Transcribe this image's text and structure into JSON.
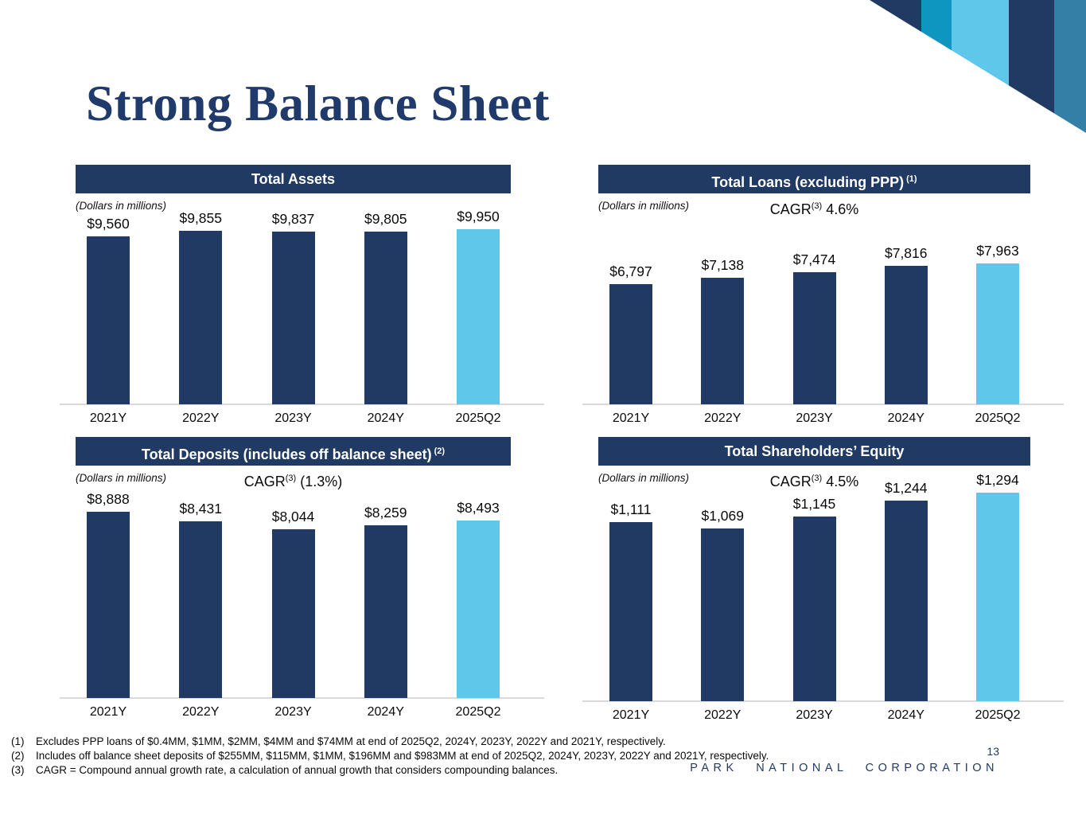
{
  "page": {
    "title": "Strong Balance Sheet",
    "page_number": "13",
    "footer_brand": "PARK NATIONAL CORPORATION"
  },
  "colors": {
    "navy": "#203a63",
    "highlight": "#5ec7ea",
    "axis_line": "#d9d9d9",
    "corner_teal": "#0e95c0",
    "corner_steel": "#337fa6"
  },
  "footnotes": [
    {
      "num": "(1)",
      "text": "Excludes PPP loans of $0.4MM, $1MM, $2MM, $4MM and $74MM at end of 2025Q2, 2024Y, 2023Y, 2022Y and 2021Y, respectively."
    },
    {
      "num": "(2)",
      "text": "Includes off balance sheet deposits of $255MM, $115MM, $1MM, $196MM and $983MM at end of 2025Q2, 2024Y, 2023Y, 2022Y and 2021Y, respectively."
    },
    {
      "num": "(3)",
      "text": "CAGR = Compound annual growth rate, a calculation of annual growth that considers compounding balances."
    }
  ],
  "chart_data": [
    {
      "id": "total-assets",
      "type": "bar",
      "title": "Total Assets",
      "title_sup": "",
      "subtitle": "(Dollars in millions)",
      "cagr": null,
      "categories": [
        "2021Y",
        "2022Y",
        "2023Y",
        "2024Y",
        "2025Q2"
      ],
      "values": [
        9560,
        9855,
        9837,
        9805,
        9950
      ],
      "value_labels": [
        "$9,560",
        "$9,855",
        "$9,837",
        "$9,805",
        "$9,950"
      ],
      "ylim": [
        0,
        12000
      ],
      "highlight_index": 4,
      "legend": "none",
      "grid": false
    },
    {
      "id": "total-loans",
      "type": "bar",
      "title": "Total Loans (excluding PPP)",
      "title_sup": "(1)",
      "subtitle": "(Dollars in millions)",
      "cagr": {
        "prefix": "CAGR",
        "sup": "(3)",
        "value": "4.6%"
      },
      "categories": [
        "2021Y",
        "2022Y",
        "2023Y",
        "2024Y",
        "2025Q2"
      ],
      "values": [
        6797,
        7138,
        7474,
        7816,
        7963
      ],
      "value_labels": [
        "$6,797",
        "$7,138",
        "$7,474",
        "$7,816",
        "$7,963"
      ],
      "ylim": [
        0,
        11900
      ],
      "highlight_index": 4,
      "legend": "none",
      "grid": false
    },
    {
      "id": "total-deposits",
      "type": "bar",
      "title": "Total Deposits (includes off balance sheet)",
      "title_sup": "(2)",
      "subtitle": "(Dollars in millions)",
      "cagr": {
        "prefix": "CAGR",
        "sup": "(3)",
        "value": "(1.3%)"
      },
      "categories": [
        "2021Y",
        "2022Y",
        "2023Y",
        "2024Y",
        "2025Q2"
      ],
      "values": [
        8888,
        8431,
        8044,
        8259,
        8493
      ],
      "value_labels": [
        "$8,888",
        "$8,431",
        "$8,044",
        "$8,259",
        "$8,493"
      ],
      "ylim": [
        0,
        11100
      ],
      "highlight_index": 4,
      "legend": "none",
      "grid": false
    },
    {
      "id": "total-shareholders-equity",
      "type": "bar",
      "title": "Total Shareholders’ Equity",
      "title_sup": "",
      "subtitle": "(Dollars in millions)",
      "cagr": {
        "prefix": "CAGR",
        "sup": "(3)",
        "value": "4.5%"
      },
      "categories": [
        "2021Y",
        "2022Y",
        "2023Y",
        "2024Y",
        "2025Q2"
      ],
      "values": [
        1111,
        1069,
        1145,
        1244,
        1294
      ],
      "value_labels": [
        "$1,111",
        "$1,069",
        "$1,145",
        "$1,244",
        "$1,294"
      ],
      "ylim": [
        0,
        1460
      ],
      "highlight_index": 4,
      "legend": "none",
      "grid": false
    }
  ]
}
